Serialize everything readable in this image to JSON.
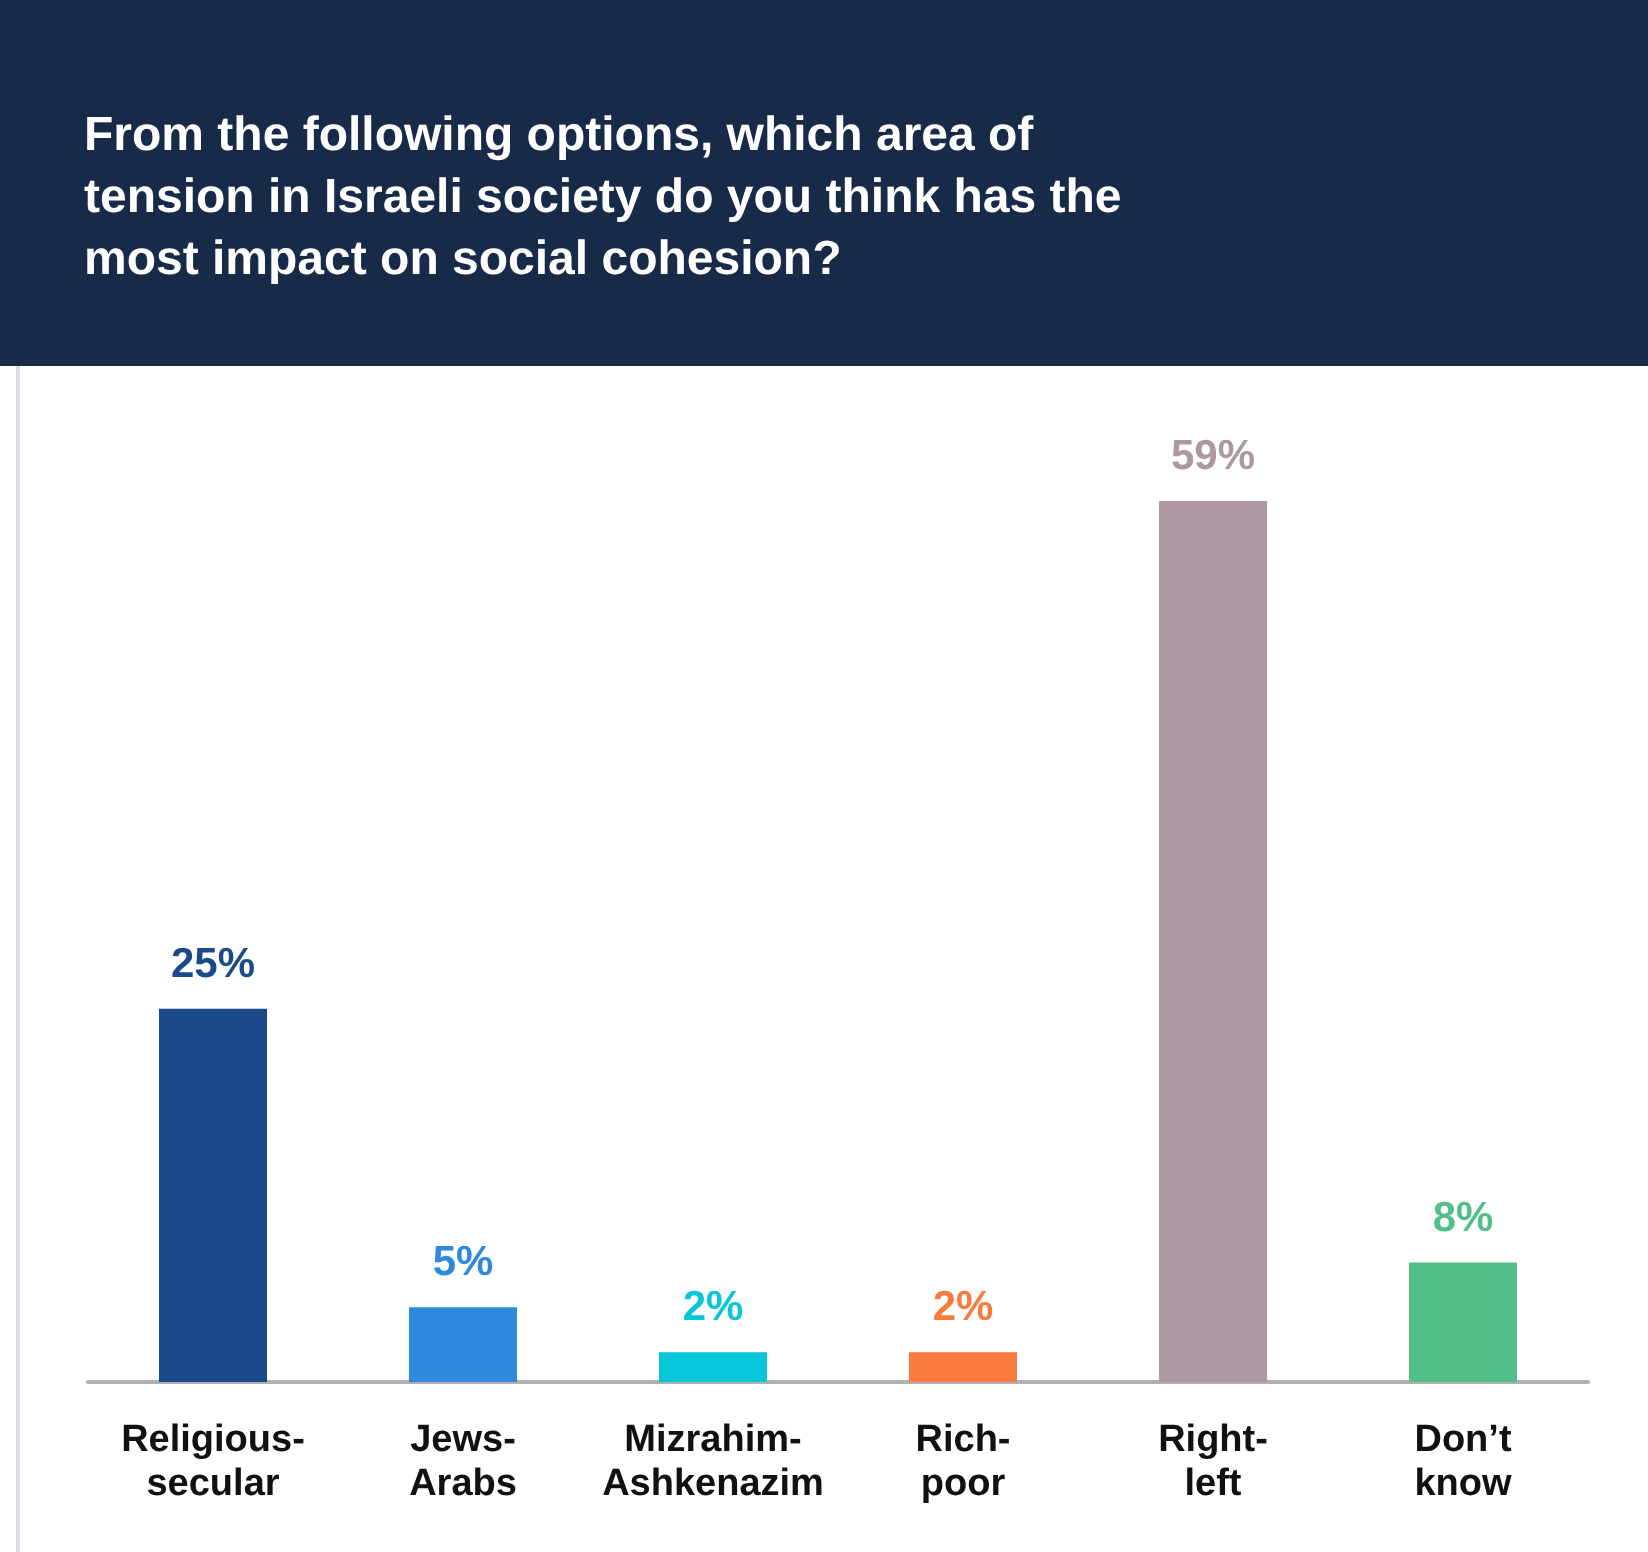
{
  "chart_data": {
    "type": "bar",
    "title": "From the following options, which area of tension in Israeli society do you think has the most impact on social cohesion?",
    "categories": [
      "Religious-secular",
      "Jews-Arabs",
      "Mizrahim-Ashkenazim",
      "Rich-poor",
      "Right-left",
      "Don’t know"
    ],
    "values": [
      25,
      5,
      2,
      2,
      59,
      8
    ],
    "value_labels": [
      "25%",
      "5%",
      "2%",
      "2%",
      "59%",
      "8%"
    ],
    "colors": [
      "#1b4a8b",
      "#2f89dc",
      "#08c6d9",
      "#fb7a3e",
      "#ad97a2",
      "#52bf89"
    ]
  }
}
